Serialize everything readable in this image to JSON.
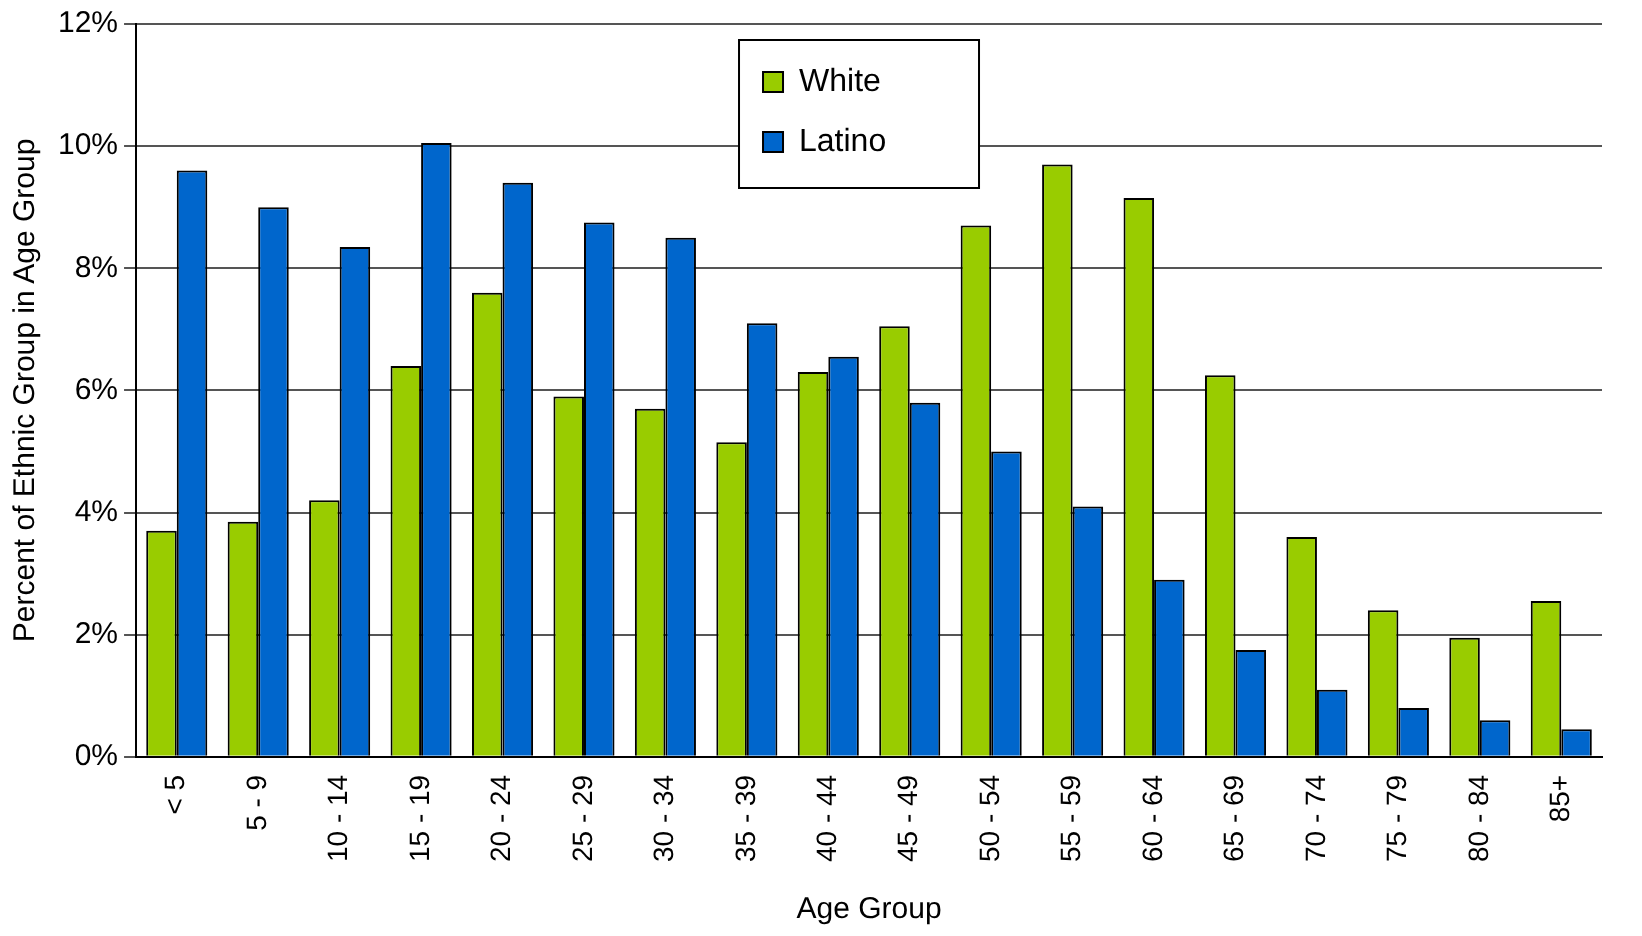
{
  "chart_data": {
    "type": "bar",
    "xlabel": "Age Group",
    "ylabel": "Percent of Ethnic Group in Age Group",
    "categories": [
      "< 5",
      "5 - 9",
      "10 - 14",
      "15 - 19",
      "20 - 24",
      "25 - 29",
      "30 - 34",
      "35 - 39",
      "40 - 44",
      "45 - 49",
      "50 - 54",
      "55 - 59",
      "60 - 64",
      "65 - 69",
      "70 - 74",
      "75 - 79",
      "80 - 84",
      "85+"
    ],
    "series": [
      {
        "name": "White",
        "color": "#99cc00",
        "values": [
          3.7,
          3.85,
          4.2,
          6.4,
          7.6,
          5.9,
          5.7,
          5.15,
          6.3,
          7.05,
          8.7,
          9.7,
          9.15,
          6.25,
          3.6,
          2.4,
          1.95,
          2.55
        ]
      },
      {
        "name": "Latino",
        "color": "#0066cc",
        "values": [
          9.6,
          9.0,
          8.35,
          10.05,
          9.4,
          8.75,
          8.5,
          7.1,
          6.55,
          5.8,
          5.0,
          4.1,
          2.9,
          1.75,
          1.1,
          0.8,
          0.6,
          0.45
        ]
      }
    ],
    "ylim": [
      0,
      12
    ],
    "yticks": [
      {
        "value": 0,
        "label": "0%"
      },
      {
        "value": 2,
        "label": "2%"
      },
      {
        "value": 4,
        "label": "4%"
      },
      {
        "value": 6,
        "label": "6%"
      },
      {
        "value": 8,
        "label": "8%"
      },
      {
        "value": 10,
        "label": "10%"
      },
      {
        "value": 12,
        "label": "12%"
      }
    ],
    "grid": "y",
    "legend": "top"
  }
}
